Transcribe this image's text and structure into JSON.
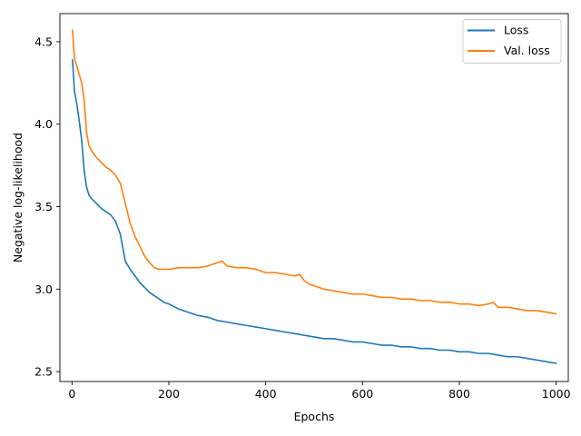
{
  "chart_data": {
    "type": "line",
    "title": "",
    "xlabel": "Epochs",
    "ylabel": "Negative log-likelihood",
    "xlim": [
      -25,
      1025
    ],
    "ylim": [
      2.44,
      4.67
    ],
    "xticks": [
      0,
      200,
      400,
      600,
      800,
      1000
    ],
    "yticks": [
      2.5,
      3.0,
      3.5,
      4.0,
      4.5
    ],
    "xtick_labels": [
      "0",
      "200",
      "400",
      "600",
      "800",
      "1000"
    ],
    "ytick_labels": [
      "2.5",
      "3.0",
      "3.5",
      "4.0",
      "4.5"
    ],
    "grid": false,
    "legend_position": "top-right",
    "series": [
      {
        "name": "Loss",
        "color": "#1f77b4",
        "x": [
          1,
          5,
          10,
          15,
          20,
          25,
          30,
          35,
          40,
          50,
          60,
          70,
          80,
          90,
          100,
          105,
          110,
          120,
          130,
          140,
          150,
          160,
          170,
          180,
          190,
          200,
          220,
          240,
          260,
          280,
          300,
          320,
          340,
          360,
          380,
          400,
          420,
          440,
          460,
          480,
          500,
          520,
          540,
          560,
          580,
          600,
          620,
          640,
          660,
          680,
          700,
          720,
          740,
          760,
          780,
          800,
          820,
          840,
          860,
          880,
          900,
          920,
          940,
          960,
          980,
          1000
        ],
        "y": [
          4.39,
          4.2,
          4.12,
          4.02,
          3.9,
          3.72,
          3.62,
          3.57,
          3.55,
          3.52,
          3.49,
          3.47,
          3.45,
          3.41,
          3.33,
          3.25,
          3.17,
          3.12,
          3.08,
          3.04,
          3.01,
          2.98,
          2.96,
          2.94,
          2.92,
          2.91,
          2.88,
          2.86,
          2.84,
          2.83,
          2.81,
          2.8,
          2.79,
          2.78,
          2.77,
          2.76,
          2.75,
          2.74,
          2.73,
          2.72,
          2.71,
          2.7,
          2.7,
          2.69,
          2.68,
          2.68,
          2.67,
          2.66,
          2.66,
          2.65,
          2.65,
          2.64,
          2.64,
          2.63,
          2.63,
          2.62,
          2.62,
          2.61,
          2.61,
          2.6,
          2.59,
          2.59,
          2.58,
          2.57,
          2.56,
          2.55
        ]
      },
      {
        "name": "Val. loss",
        "color": "#ff7f0e",
        "x": [
          1,
          5,
          10,
          15,
          20,
          25,
          30,
          35,
          40,
          50,
          60,
          70,
          80,
          90,
          100,
          110,
          120,
          130,
          140,
          150,
          160,
          170,
          180,
          190,
          200,
          220,
          240,
          260,
          280,
          300,
          310,
          320,
          340,
          360,
          380,
          400,
          420,
          440,
          460,
          470,
          480,
          490,
          500,
          520,
          540,
          560,
          580,
          600,
          620,
          640,
          660,
          680,
          700,
          720,
          740,
          760,
          780,
          800,
          820,
          840,
          860,
          870,
          880,
          900,
          920,
          940,
          960,
          980,
          1000
        ],
        "y": [
          4.57,
          4.4,
          4.35,
          4.3,
          4.25,
          4.15,
          3.95,
          3.87,
          3.84,
          3.8,
          3.77,
          3.74,
          3.72,
          3.69,
          3.64,
          3.52,
          3.4,
          3.32,
          3.26,
          3.2,
          3.16,
          3.13,
          3.12,
          3.12,
          3.12,
          3.13,
          3.13,
          3.13,
          3.14,
          3.16,
          3.17,
          3.14,
          3.13,
          3.13,
          3.12,
          3.1,
          3.1,
          3.09,
          3.08,
          3.09,
          3.05,
          3.03,
          3.02,
          3.0,
          2.99,
          2.98,
          2.97,
          2.97,
          2.96,
          2.95,
          2.95,
          2.94,
          2.94,
          2.93,
          2.93,
          2.92,
          2.92,
          2.91,
          2.91,
          2.9,
          2.91,
          2.92,
          2.89,
          2.89,
          2.88,
          2.87,
          2.87,
          2.86,
          2.85
        ]
      }
    ]
  }
}
